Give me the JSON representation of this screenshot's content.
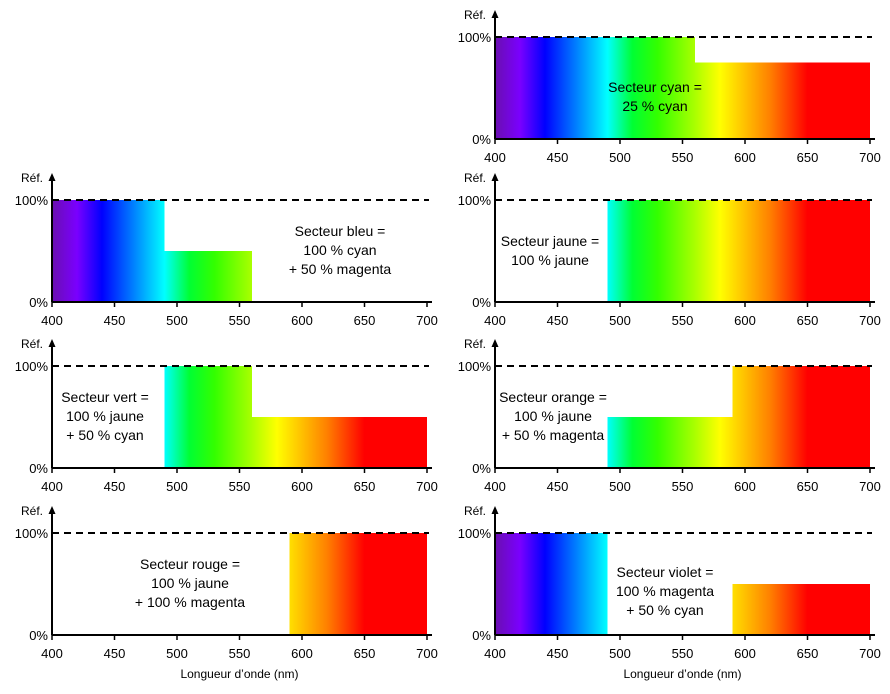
{
  "axis": {
    "y_title": "Réf.",
    "y_ticks": [
      "100%",
      "0%"
    ],
    "x_ticks": [
      400,
      450,
      500,
      550,
      600,
      650,
      700
    ],
    "x_title": "Longueur d’onde (nm)"
  },
  "spectrum_colors": [
    {
      "nm": 400,
      "color": "#6a0fb0"
    },
    {
      "nm": 420,
      "color": "#7a00ff"
    },
    {
      "nm": 440,
      "color": "#0000ff"
    },
    {
      "nm": 470,
      "color": "#0099ff"
    },
    {
      "nm": 490,
      "color": "#00ffff"
    },
    {
      "nm": 510,
      "color": "#00ff33"
    },
    {
      "nm": 530,
      "color": "#33ff00"
    },
    {
      "nm": 560,
      "color": "#aaff00"
    },
    {
      "nm": 580,
      "color": "#ffff00"
    },
    {
      "nm": 620,
      "color": "#ff8000"
    },
    {
      "nm": 650,
      "color": "#ff0000"
    },
    {
      "nm": 700,
      "color": "#ff0000"
    }
  ],
  "panels": [
    {
      "id": "cyan",
      "label": [
        "Secteur cyan =",
        "25 % cyan"
      ],
      "segments": [
        {
          "from": 400,
          "to": 560,
          "percent": 100
        },
        {
          "from": 560,
          "to": 700,
          "percent": 75
        }
      ]
    },
    {
      "id": "bleu",
      "label": [
        "Secteur bleu =",
        "100 % cyan",
        "+ 50 % magenta"
      ],
      "segments": [
        {
          "from": 400,
          "to": 490,
          "percent": 100
        },
        {
          "from": 490,
          "to": 560,
          "percent": 50
        }
      ]
    },
    {
      "id": "jaune",
      "label": [
        "Secteur jaune =",
        "100 % jaune"
      ],
      "segments": [
        {
          "from": 490,
          "to": 700,
          "percent": 100
        }
      ]
    },
    {
      "id": "vert",
      "label": [
        "Secteur vert =",
        "100 % jaune",
        "+ 50 % cyan"
      ],
      "segments": [
        {
          "from": 490,
          "to": 560,
          "percent": 100
        },
        {
          "from": 560,
          "to": 700,
          "percent": 50
        }
      ]
    },
    {
      "id": "orange",
      "label": [
        "Secteur orange =",
        "100 % jaune",
        "+ 50 % magenta"
      ],
      "segments": [
        {
          "from": 490,
          "to": 590,
          "percent": 50
        },
        {
          "from": 590,
          "to": 700,
          "percent": 100
        }
      ]
    },
    {
      "id": "rouge",
      "label": [
        "Secteur rouge =",
        "100 % jaune",
        "+ 100 % magenta"
      ],
      "segments": [
        {
          "from": 590,
          "to": 700,
          "percent": 100
        }
      ]
    },
    {
      "id": "violet",
      "label": [
        "Secteur violet =",
        "100 % magenta",
        "+ 50 % cyan"
      ],
      "segments": [
        {
          "from": 400,
          "to": 490,
          "percent": 100
        },
        {
          "from": 590,
          "to": 700,
          "percent": 50
        }
      ]
    }
  ]
}
